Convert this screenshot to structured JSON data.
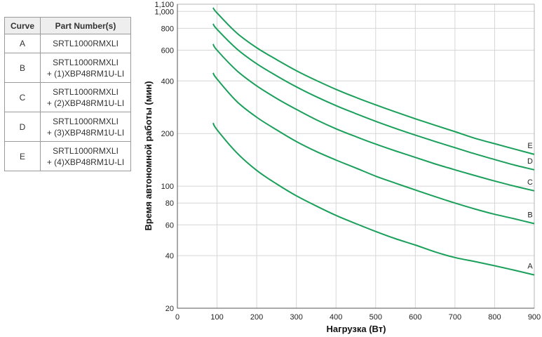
{
  "legend_table": {
    "headers": [
      "Curve",
      "Part Number(s)"
    ],
    "rows": [
      {
        "curve": "A",
        "line1": "SRTL1000RMXLI",
        "line2": ""
      },
      {
        "curve": "B",
        "line1": "SRTL1000RMXLI",
        "line2": "+ (1)XBP48RM1U-LI"
      },
      {
        "curve": "C",
        "line1": "SRTL1000RMXLI",
        "line2": "+ (2)XBP48RM1U-LI"
      },
      {
        "curve": "D",
        "line1": "SRTL1000RMXLI",
        "line2": "+ (3)XBP48RM1U-LI"
      },
      {
        "curve": "E",
        "line1": "SRTL1000RMXLI",
        "line2": "+ (4)XBP48RM1U-LI"
      }
    ]
  },
  "chart_data": {
    "type": "line",
    "xlabel": "Нагрузка (Вт)",
    "ylabel": "Время автономной работы (мин)",
    "xlim": [
      0,
      900
    ],
    "ylim": [
      20,
      1100
    ],
    "yscale": "log",
    "xticks": [
      0,
      100,
      200,
      300,
      400,
      500,
      600,
      700,
      800,
      900
    ],
    "yticks": [
      20,
      40,
      60,
      80,
      100,
      200,
      400,
      600,
      800,
      1000,
      1100
    ],
    "ytick_labels": [
      "20",
      "40",
      "60",
      "80",
      "100",
      "200",
      "400",
      "600",
      "800",
      "1,000",
      "1,100"
    ],
    "grid": true,
    "line_color": "#1aa05a",
    "x": [
      90,
      100,
      150,
      200,
      250,
      300,
      350,
      400,
      450,
      500,
      550,
      600,
      650,
      700,
      750,
      800,
      850,
      900
    ],
    "series": [
      {
        "name": "A",
        "values": [
          230,
          210,
          155,
          123,
          103,
          88,
          77,
          68,
          61,
          55,
          50,
          46,
          42,
          39,
          37,
          35,
          33,
          31
        ]
      },
      {
        "name": "B",
        "values": [
          445,
          410,
          305,
          248,
          210,
          180,
          158,
          141,
          127,
          114,
          104,
          95,
          87,
          80,
          74,
          69,
          65,
          61
        ]
      },
      {
        "name": "C",
        "values": [
          650,
          600,
          458,
          375,
          318,
          275,
          240,
          213,
          192,
          174,
          159,
          146,
          134,
          124,
          115,
          107,
          100,
          94
        ]
      },
      {
        "name": "D",
        "values": [
          850,
          790,
          610,
          502,
          428,
          370,
          325,
          289,
          260,
          235,
          214,
          196,
          180,
          166,
          153,
          142,
          132,
          124
        ]
      },
      {
        "name": "E",
        "values": [
          1050,
          980,
          752,
          620,
          530,
          458,
          403,
          358,
          322,
          292,
          266,
          243,
          223,
          205,
          188,
          175,
          163,
          152
        ]
      }
    ]
  }
}
